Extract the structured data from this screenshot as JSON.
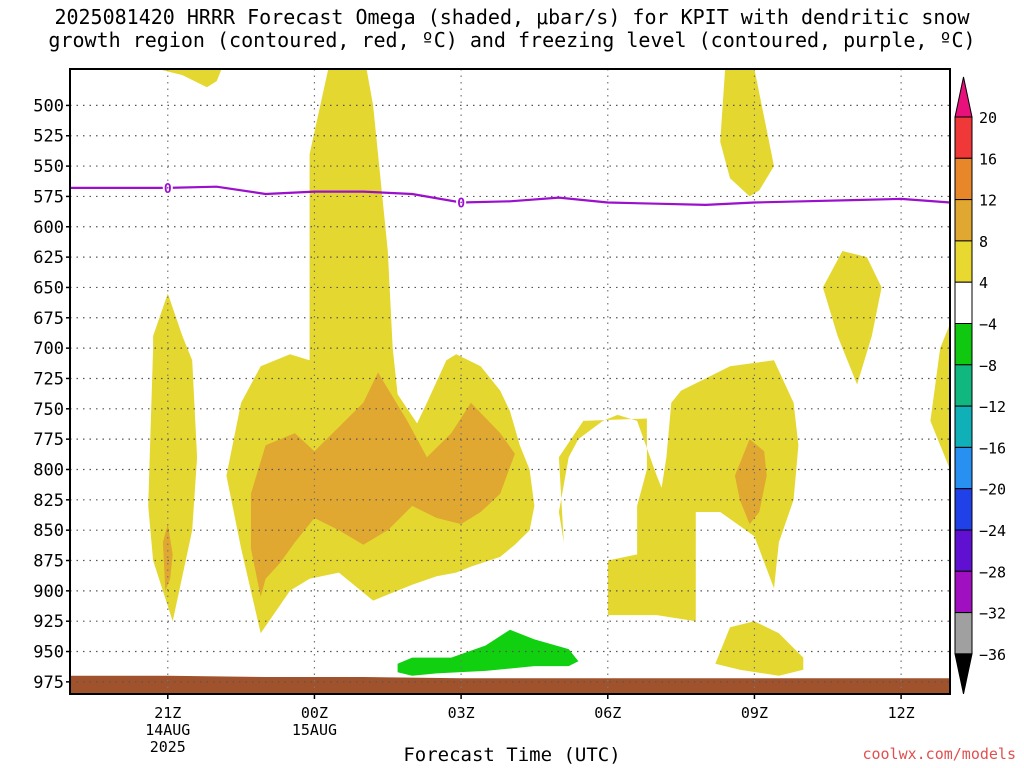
{
  "header": {
    "title_line1": "2025081420 HRRR Forecast Omega (shaded, μbar/s) for KPIT with dendritic snow",
    "title_line2": "growth region (contoured, red, ºC) and freezing level (contoured, purple, ºC)"
  },
  "footer": {
    "credit": "coolwx.com/models"
  },
  "chart_data": {
    "type": "contour",
    "xlabel": "Forecast Time (UTC)",
    "ylabel": "",
    "x_range_hours": [
      -2,
      16
    ],
    "y_range_mb": [
      985,
      470
    ],
    "x_ticks": [
      {
        "h": 0,
        "lines": [
          "21Z",
          "14AUG",
          "2025"
        ]
      },
      {
        "h": 3,
        "lines": [
          "00Z",
          "15AUG"
        ]
      },
      {
        "h": 6,
        "lines": [
          "03Z"
        ]
      },
      {
        "h": 9,
        "lines": [
          "06Z"
        ]
      },
      {
        "h": 12,
        "lines": [
          "09Z"
        ]
      },
      {
        "h": 15,
        "lines": [
          "12Z"
        ]
      }
    ],
    "y_ticks": [
      500,
      525,
      550,
      575,
      600,
      625,
      650,
      675,
      700,
      725,
      750,
      775,
      800,
      825,
      850,
      875,
      900,
      925,
      950,
      975
    ],
    "grid": true,
    "colorbar": {
      "labels": [
        "20",
        "16",
        "12",
        "8",
        "4",
        "−4",
        "−8",
        "−12",
        "−16",
        "−20",
        "−24",
        "−28",
        "−32",
        "−36"
      ],
      "colors": [
        "#f03838",
        "#e8862a",
        "#e0a830",
        "#e8d830",
        "#ffffff",
        "#10c810",
        "#10b880",
        "#10b0b8",
        "#2890f0",
        "#2040e8",
        "#6010d0",
        "#a010c0",
        "#a0a0a0"
      ],
      "top_arrow_color": "#e8107a",
      "bottom_arrow_color": "#000000"
    },
    "fill_colors": {
      "omega_4_8": "#e4d830",
      "omega_8_12": "#e0a830",
      "omega_neg4_neg8": "#10d010",
      "ground": "#a0522d"
    },
    "freezing_level": {
      "color": "#9a10cc",
      "label": "0",
      "label_hours": [
        0,
        6
      ],
      "points": [
        [
          -2,
          568
        ],
        [
          0,
          568
        ],
        [
          1,
          567
        ],
        [
          2,
          573
        ],
        [
          3,
          571
        ],
        [
          4,
          571
        ],
        [
          5,
          573
        ],
        [
          6,
          580
        ],
        [
          7,
          579
        ],
        [
          8,
          576
        ],
        [
          9,
          580
        ],
        [
          10,
          581
        ],
        [
          11,
          582
        ],
        [
          12,
          580
        ],
        [
          13,
          579
        ],
        [
          14,
          578
        ],
        [
          15,
          577
        ],
        [
          16,
          580
        ]
      ]
    },
    "omega_4_8_regions": [
      [
        [
          -0.4,
          468
        ],
        [
          0.4,
          470
        ],
        [
          1.1,
          470
        ],
        [
          1.0,
          480
        ],
        [
          0.8,
          485
        ],
        [
          0.3,
          475
        ]
      ],
      [
        [
          -0.3,
          690
        ],
        [
          0,
          655
        ],
        [
          0.3,
          690
        ],
        [
          0.5,
          710
        ],
        [
          0.6,
          790
        ],
        [
          0.5,
          850
        ],
        [
          0.1,
          925
        ],
        [
          -0.3,
          875
        ],
        [
          -0.4,
          830
        ],
        [
          -0.3,
          700
        ]
      ],
      [
        [
          2.9,
          710
        ],
        [
          2.9,
          540
        ],
        [
          3.5,
          430
        ],
        [
          4.0,
          455
        ],
        [
          4.2,
          500
        ],
        [
          4.5,
          620
        ],
        [
          4.6,
          700
        ],
        [
          4.7,
          738
        ],
        [
          5.1,
          762
        ],
        [
          5.3,
          745
        ],
        [
          5.7,
          710
        ],
        [
          5.9,
          705
        ],
        [
          6.4,
          715
        ],
        [
          6.8,
          735
        ],
        [
          7.0,
          752
        ],
        [
          7.2,
          780
        ],
        [
          7.4,
          800
        ],
        [
          7.5,
          830
        ],
        [
          7.4,
          850
        ],
        [
          7.1,
          862
        ],
        [
          6.8,
          872
        ],
        [
          6.2,
          880
        ],
        [
          5.9,
          885
        ],
        [
          5.5,
          888
        ],
        [
          5.0,
          895
        ],
        [
          4.2,
          908
        ],
        [
          3.5,
          885
        ],
        [
          2.9,
          890
        ],
        [
          2.5,
          900
        ],
        [
          1.9,
          935
        ],
        [
          1.5,
          865
        ],
        [
          1.2,
          805
        ],
        [
          1.5,
          745
        ],
        [
          1.9,
          715
        ],
        [
          2.5,
          705
        ]
      ],
      [
        [
          8.0,
          790
        ],
        [
          8.5,
          760
        ],
        [
          9.8,
          758
        ],
        [
          9.8,
          800
        ],
        [
          9.6,
          830
        ],
        [
          9.6,
          870
        ],
        [
          9.0,
          875
        ],
        [
          9.0,
          920
        ],
        [
          10.0,
          920
        ],
        [
          10.8,
          925
        ],
        [
          10.8,
          835
        ],
        [
          11.3,
          835
        ],
        [
          12.0,
          855
        ],
        [
          12.4,
          898
        ],
        [
          12.5,
          860
        ],
        [
          12.8,
          825
        ],
        [
          12.9,
          780
        ],
        [
          12.8,
          745
        ],
        [
          12.4,
          710
        ],
        [
          11.5,
          715
        ],
        [
          11.0,
          725
        ],
        [
          10.5,
          735
        ],
        [
          10.3,
          745
        ],
        [
          10.2,
          790
        ],
        [
          10.1,
          815
        ],
        [
          10.0,
          805
        ],
        [
          9.6,
          760
        ],
        [
          9.2,
          755
        ],
        [
          8.9,
          760
        ],
        [
          8.4,
          775
        ],
        [
          8.2,
          790
        ],
        [
          8.0,
          835
        ],
        [
          8.1,
          860
        ]
      ],
      [
        [
          11.2,
          960
        ],
        [
          11.5,
          930
        ],
        [
          12.0,
          925
        ],
        [
          12.5,
          935
        ],
        [
          13.0,
          955
        ],
        [
          13.0,
          965
        ],
        [
          12.5,
          970
        ],
        [
          11.7,
          965
        ]
      ],
      [
        [
          13.4,
          650
        ],
        [
          13.8,
          620
        ],
        [
          14.3,
          625
        ],
        [
          14.6,
          650
        ],
        [
          14.4,
          690
        ],
        [
          14.1,
          730
        ],
        [
          13.7,
          690
        ]
      ],
      [
        [
          15.6,
          760
        ],
        [
          15.8,
          700
        ],
        [
          15.9,
          690
        ],
        [
          16,
          680
        ],
        [
          16,
          800
        ],
        [
          15.9,
          790
        ],
        [
          15.7,
          770
        ]
      ],
      [
        [
          11.4,
          470
        ],
        [
          12.0,
          470
        ],
        [
          12.3,
          530
        ],
        [
          12.4,
          550
        ],
        [
          12.1,
          570
        ],
        [
          11.9,
          575
        ],
        [
          11.5,
          560
        ],
        [
          11.3,
          530
        ]
      ]
    ],
    "omega_8_12_regions": [
      [
        [
          -0.1,
          860
        ],
        [
          0,
          845
        ],
        [
          0.1,
          870
        ],
        [
          0.05,
          890
        ],
        [
          -0.05,
          900
        ]
      ],
      [
        [
          1.7,
          820
        ],
        [
          2.0,
          780
        ],
        [
          2.6,
          770
        ],
        [
          3.0,
          785
        ],
        [
          3.5,
          765
        ],
        [
          4.0,
          745
        ],
        [
          4.3,
          720
        ],
        [
          4.9,
          760
        ],
        [
          5.3,
          790
        ],
        [
          5.8,
          770
        ],
        [
          6.2,
          745
        ],
        [
          6.8,
          770
        ],
        [
          7.1,
          787
        ],
        [
          6.8,
          820
        ],
        [
          6.4,
          835
        ],
        [
          6.0,
          845
        ],
        [
          5.5,
          840
        ],
        [
          5.0,
          830
        ],
        [
          4.5,
          850
        ],
        [
          4.0,
          862
        ],
        [
          3.5,
          850
        ],
        [
          3.0,
          840
        ],
        [
          2.6,
          860
        ],
        [
          2.3,
          877
        ],
        [
          2.0,
          890
        ],
        [
          1.9,
          905
        ],
        [
          1.7,
          865
        ]
      ],
      [
        [
          11.6,
          805
        ],
        [
          11.9,
          775
        ],
        [
          12.2,
          785
        ],
        [
          12.25,
          805
        ],
        [
          12.1,
          835
        ],
        [
          11.9,
          845
        ],
        [
          11.7,
          825
        ]
      ]
    ],
    "omega_neg4_neg8_regions": [
      [
        [
          4.7,
          960
        ],
        [
          5.0,
          955
        ],
        [
          5.8,
          955
        ],
        [
          6.5,
          945
        ],
        [
          7.0,
          932
        ],
        [
          7.5,
          940
        ],
        [
          8.2,
          948
        ],
        [
          8.4,
          958
        ],
        [
          8.2,
          962
        ],
        [
          7.5,
          962
        ],
        [
          6.5,
          966
        ],
        [
          5.5,
          968
        ],
        [
          5.0,
          970
        ],
        [
          4.7,
          967
        ]
      ]
    ],
    "ground_top": [
      [
        -2,
        970
      ],
      [
        0,
        970
      ],
      [
        2,
        971
      ],
      [
        4,
        971
      ],
      [
        6,
        972
      ],
      [
        8,
        972
      ],
      [
        10,
        972
      ],
      [
        12,
        972
      ],
      [
        14,
        972
      ],
      [
        16,
        972
      ]
    ]
  }
}
